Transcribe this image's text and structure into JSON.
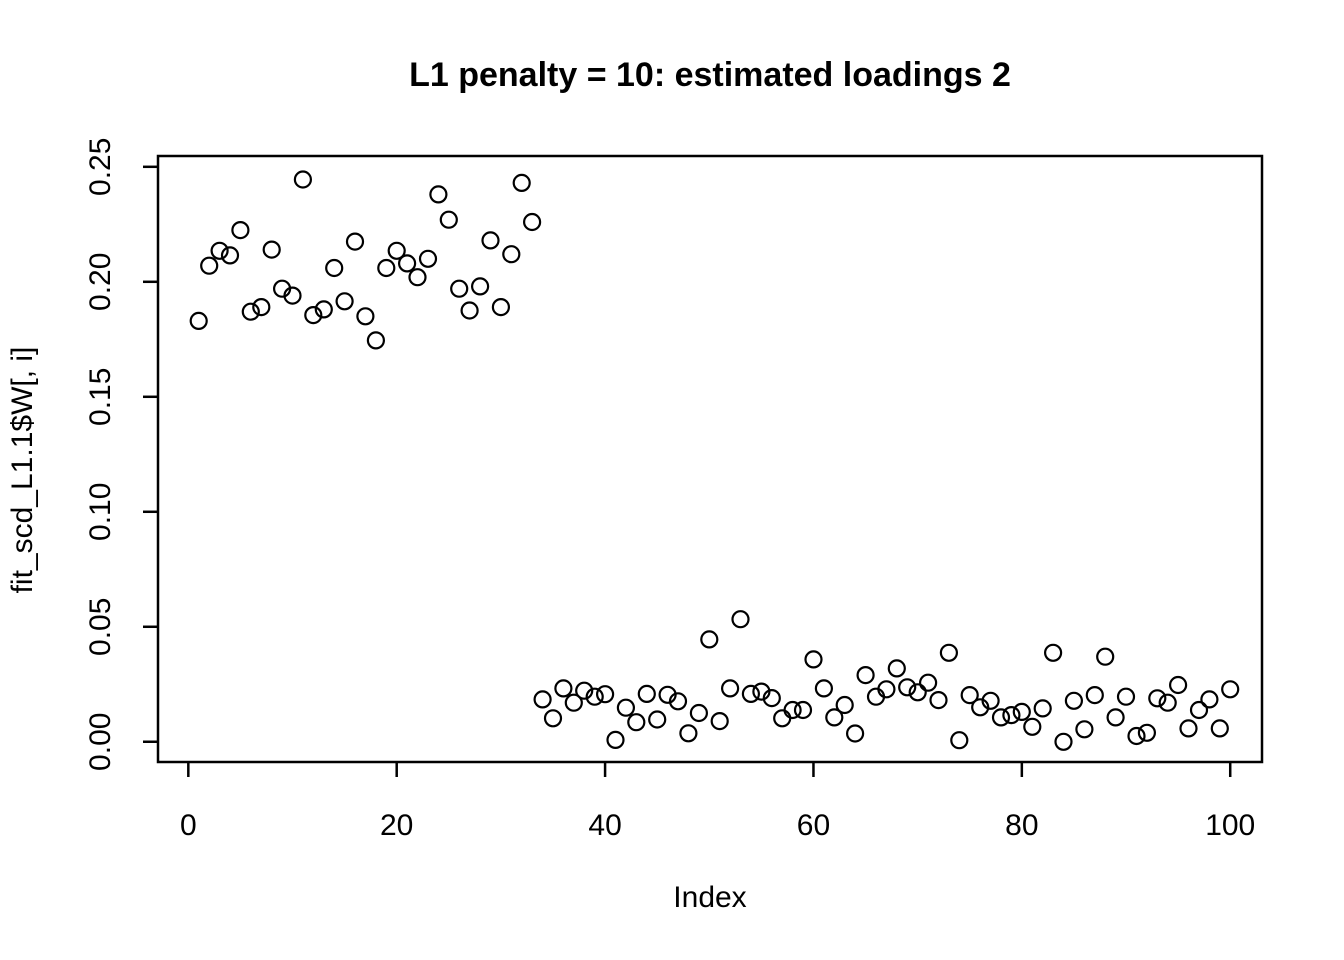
{
  "chart_data": {
    "type": "scatter",
    "title": "L1 penalty = 10: estimated loadings 2",
    "xlabel": "Index",
    "ylabel": "fit_scd_L1.1$W[, i]",
    "marker": "open-circle",
    "grid": false,
    "legend_position": "none",
    "point_color": "#000000",
    "axis_color": "#000000",
    "background_color": "#ffffff",
    "xlim": [
      -2.91,
      103.05
    ],
    "ylim": [
      -0.0088,
      0.2547
    ],
    "x_ticks": {
      "values": [
        0,
        20,
        40,
        60,
        80,
        100
      ],
      "labels": [
        "0",
        "20",
        "40",
        "60",
        "80",
        "100"
      ]
    },
    "y_ticks": {
      "values": [
        0.0,
        0.05,
        0.1,
        0.15,
        0.2,
        0.25
      ],
      "labels": [
        "0.00",
        "0.05",
        "0.10",
        "0.15",
        "0.20",
        "0.25"
      ]
    },
    "x": [
      1,
      2,
      3,
      4,
      5,
      6,
      7,
      8,
      9,
      10,
      11,
      12,
      13,
      14,
      15,
      16,
      17,
      18,
      19,
      20,
      21,
      22,
      23,
      24,
      25,
      26,
      27,
      28,
      29,
      30,
      31,
      32,
      33,
      34,
      35,
      36,
      37,
      38,
      39,
      40,
      41,
      42,
      43,
      44,
      45,
      46,
      47,
      48,
      49,
      50,
      51,
      52,
      53,
      54,
      55,
      56,
      57,
      58,
      59,
      60,
      61,
      62,
      63,
      64,
      65,
      66,
      67,
      68,
      69,
      70,
      71,
      72,
      73,
      74,
      75,
      76,
      77,
      78,
      79,
      80,
      81,
      82,
      83,
      84,
      85,
      86,
      87,
      88,
      89,
      90,
      91,
      92,
      93,
      94,
      95,
      96,
      97,
      98,
      99,
      100
    ],
    "y": [
      0.183,
      0.207,
      0.2135,
      0.2115,
      0.2225,
      0.187,
      0.189,
      0.214,
      0.197,
      0.194,
      0.2445,
      0.1855,
      0.188,
      0.206,
      0.1915,
      0.2175,
      0.185,
      0.1745,
      0.206,
      0.2135,
      0.208,
      0.202,
      0.21,
      0.238,
      0.227,
      0.197,
      0.1875,
      0.198,
      0.218,
      0.189,
      0.212,
      0.243,
      0.226,
      0.0184,
      0.0102,
      0.0232,
      0.017,
      0.0222,
      0.0196,
      0.0207,
      0.0008,
      0.0148,
      0.0085,
      0.0208,
      0.0097,
      0.0204,
      0.0176,
      0.0037,
      0.0125,
      0.0445,
      0.009,
      0.0232,
      0.0533,
      0.0208,
      0.0218,
      0.019,
      0.0102,
      0.0138,
      0.0138,
      0.0358,
      0.0232,
      0.0106,
      0.016,
      0.0036,
      0.029,
      0.0196,
      0.0228,
      0.0319,
      0.0237,
      0.0215,
      0.0257,
      0.0181,
      0.0387,
      0.0007,
      0.0203,
      0.015,
      0.0178,
      0.0106,
      0.0116,
      0.013,
      0.0065,
      0.0145,
      0.0387,
      0.0,
      0.0178,
      0.0054,
      0.0203,
      0.037,
      0.0106,
      0.0196,
      0.0025,
      0.0039,
      0.0189,
      0.017,
      0.0247,
      0.0058,
      0.0138,
      0.0184,
      0.0058,
      0.0228
    ]
  }
}
